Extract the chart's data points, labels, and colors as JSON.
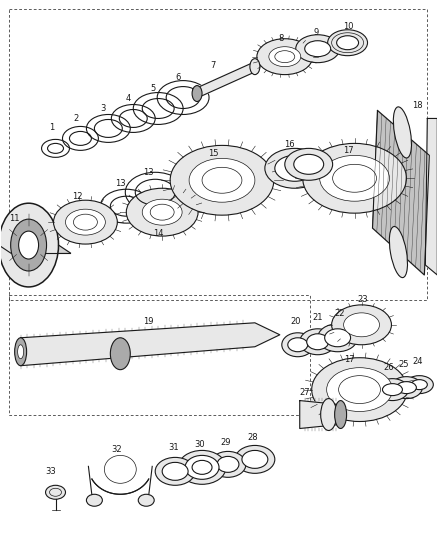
{
  "background_color": "#ffffff",
  "line_color": "#1a1a1a",
  "fig_width": 4.38,
  "fig_height": 5.33,
  "dpi": 100,
  "label_fontsize": 6.0,
  "lw_thin": 0.5,
  "lw_med": 0.8,
  "lw_thick": 1.1,
  "gray_fill": "#cccccc",
  "light_gray": "#e8e8e8",
  "mid_gray": "#aaaaaa",
  "dark_gray": "#555555"
}
